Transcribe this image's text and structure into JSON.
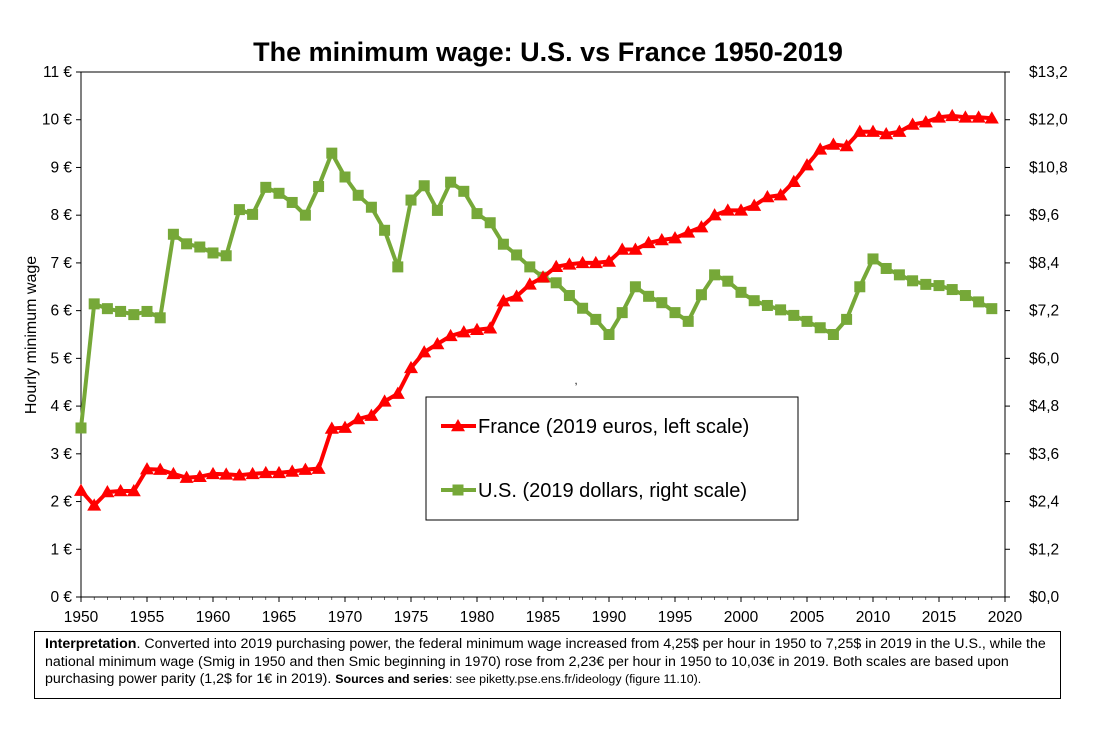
{
  "chart_data": {
    "type": "line",
    "title": "The minimum wage: U.S. vs France 1950-2019",
    "ylabel": "Hourly minimum wage",
    "xlim": [
      1950,
      2020
    ],
    "ylim_left": [
      0,
      11
    ],
    "ylim_right": [
      0,
      13.2
    ],
    "x_ticks": [
      "1950",
      "1955",
      "1960",
      "1965",
      "1970",
      "1975",
      "1980",
      "1985",
      "1990",
      "1995",
      "2000",
      "2005",
      "2010",
      "2015",
      "2020"
    ],
    "y_left_ticks": [
      "0 €",
      "1 €",
      "2 €",
      "3 €",
      "4 €",
      "5 €",
      "6 €",
      "7 €",
      "8 €",
      "9 €",
      "10 €",
      "11 €"
    ],
    "y_right_ticks": [
      "$0,0",
      "$1,2",
      "$2,4",
      "$3,6",
      "$4,8",
      "$6,0",
      "$7,2",
      "$8,4",
      "$9,6",
      "$10,8",
      "$12,0",
      "$13,2"
    ],
    "legend_position": "center",
    "stray_mark": ",",
    "series": [
      {
        "name": "France (2019 euros, left scale)",
        "axis": "left",
        "color": "#ff0000",
        "marker": "triangle",
        "x": [
          1950,
          1951,
          1952,
          1953,
          1954,
          1955,
          1956,
          1957,
          1958,
          1959,
          1960,
          1961,
          1962,
          1963,
          1964,
          1965,
          1966,
          1967,
          1968,
          1969,
          1970,
          1971,
          1972,
          1973,
          1974,
          1975,
          1976,
          1977,
          1978,
          1979,
          1980,
          1981,
          1982,
          1983,
          1984,
          1985,
          1986,
          1987,
          1988,
          1989,
          1990,
          1991,
          1992,
          1993,
          1994,
          1995,
          1996,
          1997,
          1998,
          1999,
          2000,
          2001,
          2002,
          2003,
          2004,
          2005,
          2006,
          2007,
          2008,
          2009,
          2010,
          2011,
          2012,
          2013,
          2014,
          2015,
          2016,
          2017,
          2018,
          2019
        ],
        "values": [
          2.23,
          1.92,
          2.2,
          2.22,
          2.22,
          2.68,
          2.67,
          2.58,
          2.5,
          2.52,
          2.58,
          2.57,
          2.55,
          2.58,
          2.6,
          2.6,
          2.63,
          2.67,
          2.69,
          3.53,
          3.55,
          3.73,
          3.8,
          4.1,
          4.26,
          4.8,
          5.13,
          5.3,
          5.47,
          5.55,
          5.6,
          5.63,
          6.2,
          6.3,
          6.55,
          6.7,
          6.92,
          6.97,
          7.0,
          7.0,
          7.03,
          7.28,
          7.28,
          7.42,
          7.48,
          7.52,
          7.64,
          7.75,
          8.0,
          8.1,
          8.1,
          8.2,
          8.38,
          8.42,
          8.7,
          9.05,
          9.38,
          9.48,
          9.45,
          9.75,
          9.75,
          9.7,
          9.75,
          9.9,
          9.95,
          10.05,
          10.08,
          10.05,
          10.05,
          10.03
        ]
      },
      {
        "name": "U.S. (2019 dollars, right scale)",
        "axis": "right",
        "color": "#76a838",
        "marker": "square",
        "x": [
          1950,
          1951,
          1952,
          1953,
          1954,
          1955,
          1956,
          1957,
          1958,
          1959,
          1960,
          1961,
          1962,
          1963,
          1964,
          1965,
          1966,
          1967,
          1968,
          1969,
          1970,
          1971,
          1972,
          1973,
          1974,
          1975,
          1976,
          1977,
          1978,
          1979,
          1980,
          1981,
          1982,
          1983,
          1984,
          1985,
          1986,
          1987,
          1988,
          1989,
          1990,
          1991,
          1992,
          1993,
          1994,
          1995,
          1996,
          1997,
          1998,
          1999,
          2000,
          2001,
          2002,
          2003,
          2004,
          2005,
          2006,
          2007,
          2008,
          2009,
          2010,
          2011,
          2012,
          2013,
          2014,
          2015,
          2016,
          2017,
          2018,
          2019
        ],
        "values": [
          4.25,
          7.37,
          7.25,
          7.18,
          7.1,
          7.18,
          7.02,
          9.12,
          8.88,
          8.8,
          8.65,
          8.58,
          9.74,
          9.62,
          10.3,
          10.15,
          9.92,
          9.6,
          10.32,
          11.16,
          10.56,
          10.1,
          9.8,
          9.22,
          8.3,
          9.98,
          10.34,
          9.72,
          10.43,
          10.2,
          9.64,
          9.41,
          8.87,
          8.6,
          8.3,
          8.04,
          7.9,
          7.58,
          7.26,
          6.98,
          6.6,
          7.15,
          7.8,
          7.56,
          7.4,
          7.15,
          6.93,
          7.6,
          8.1,
          7.94,
          7.66,
          7.45,
          7.33,
          7.22,
          7.08,
          6.93,
          6.77,
          6.6,
          6.98,
          7.8,
          8.5,
          8.26,
          8.1,
          7.95,
          7.86,
          7.83,
          7.73,
          7.58,
          7.42,
          7.25
        ]
      }
    ]
  },
  "note": {
    "lead": "Interpretation",
    "body": ". Converted into 2019 purchasing power, the federal minimum wage increased from 4,25$ per hour in 1950 to 7,25$ in 2019 in the U.S., while the national minimum wage (Smig in 1950 and then Smic beginning in 1970) rose from 2,23€ per hour in 1950 to 10,03€ in 2019. Both scales are based upon purchasing power parity (1,2$ for 1€ in 2019). ",
    "sources_label": "Sources and series",
    "sources_text": ": see piketty.pse.ens.fr/ideology (figure 11.10)."
  }
}
